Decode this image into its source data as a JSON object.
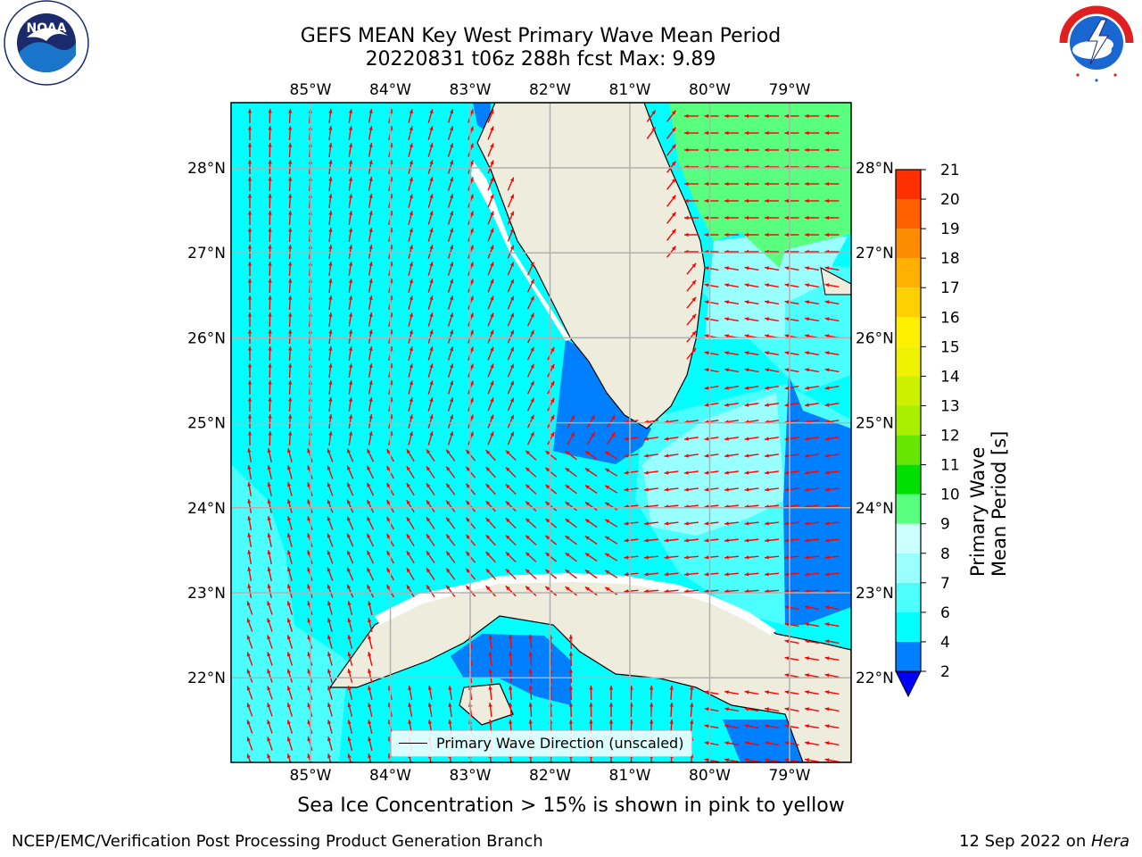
{
  "header": {
    "title_line1": "GEFS MEAN Key West Primary Wave Mean Period",
    "title_line2": "20220831 t06z 288h fcst   Max: 9.89"
  },
  "logos": {
    "left": {
      "icon": "noaa-logo-icon",
      "text": "NATIONAL OCEANIC AND ATMOSPHERIC ADMINISTRATION · U.S. DEPARTMENT OF COMMERCE",
      "center": "NOAA"
    },
    "right": {
      "icon": "nws-logo-icon",
      "text": "NATIONAL WEATHER SERVICE"
    }
  },
  "map": {
    "lon_labels": [
      "85°W",
      "84°W",
      "83°W",
      "82°W",
      "81°W",
      "80°W",
      "79°W"
    ],
    "lat_labels": [
      "28°N",
      "27°N",
      "26°N",
      "25°N",
      "24°N",
      "23°N",
      "22°N"
    ],
    "lon_values": [
      -85,
      -84,
      -83,
      -82,
      -81,
      -80,
      -79
    ],
    "lat_values": [
      28,
      27,
      26,
      25,
      24,
      23,
      22
    ],
    "legend_text": "Primary Wave Direction (unscaled)",
    "arrow_color": "#ff0000",
    "land_color": "#eeecdc",
    "grid_color": "#b0b0b0"
  },
  "colorbar": {
    "label": "Primary Wave Mean Period [s]",
    "ticks": [
      "2",
      "4",
      "6",
      "7",
      "8",
      "9",
      "10",
      "11",
      "12",
      "13",
      "14",
      "15",
      "16",
      "17",
      "18",
      "19",
      "20",
      "21"
    ],
    "bins": [
      {
        "from": 2,
        "to": 4,
        "color": "#0080ff"
      },
      {
        "from": 4,
        "to": 6,
        "color": "#00ffff"
      },
      {
        "from": 6,
        "to": 7,
        "color": "#4cffff"
      },
      {
        "from": 7,
        "to": 8,
        "color": "#99ffff"
      },
      {
        "from": 8,
        "to": 9,
        "color": "#ccffff"
      },
      {
        "from": 9,
        "to": 10,
        "color": "#59ff7f"
      },
      {
        "from": 10,
        "to": 11,
        "color": "#00e000"
      },
      {
        "from": 11,
        "to": 12,
        "color": "#66e600"
      },
      {
        "from": 12,
        "to": 13,
        "color": "#aaee00"
      },
      {
        "from": 13,
        "to": 14,
        "color": "#ccf000"
      },
      {
        "from": 14,
        "to": 15,
        "color": "#eef200"
      },
      {
        "from": 15,
        "to": 16,
        "color": "#fff000"
      },
      {
        "from": 16,
        "to": 17,
        "color": "#ffd000"
      },
      {
        "from": 17,
        "to": 18,
        "color": "#ffb000"
      },
      {
        "from": 18,
        "to": 19,
        "color": "#ff8c00"
      },
      {
        "from": 19,
        "to": 20,
        "color": "#ff6000"
      },
      {
        "from": 20,
        "to": 21,
        "color": "#ff3000"
      }
    ],
    "under_color": "#0000ff",
    "top_color": "#ff0000"
  },
  "note": "Sea Ice Concentration > 15% is shown in pink to yellow",
  "footer": {
    "left": "NCEP/EMC/Verification Post Processing Product Generation Branch",
    "right_prefix": "12 Sep 2022 on ",
    "right_machine": "Hera"
  }
}
